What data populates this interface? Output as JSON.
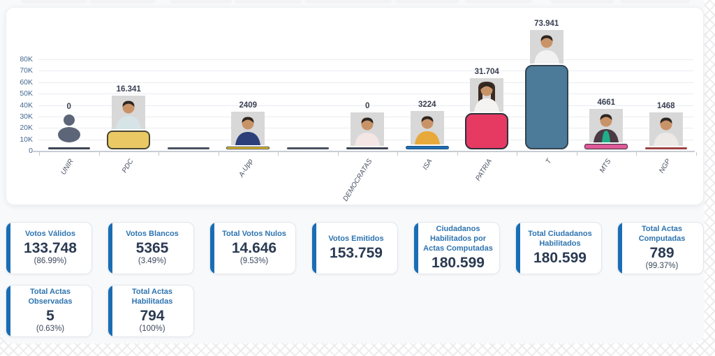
{
  "page": {
    "background_pattern_color": "#ececee",
    "panel_color": "#f8f9fb",
    "accent_color": "#1a6db5",
    "title_color": "#2e74b0",
    "number_color": "#2b3a52"
  },
  "chart_data": {
    "type": "bar",
    "title": "",
    "xlabel": "",
    "ylabel": "",
    "ylim": [
      0,
      80000
    ],
    "yticks": [
      "0",
      "10K",
      "20K",
      "30K",
      "40K",
      "50K",
      "60K",
      "70K",
      "80K"
    ],
    "grid": true,
    "legend": false,
    "categories": [
      "UNIR",
      "PDC",
      "",
      "A-Upp",
      "",
      "DEMOCRATAS",
      "ISA",
      "PATRIA",
      "T",
      "MTS",
      "NGP"
    ],
    "values": [
      0,
      16341,
      0,
      2409,
      0,
      0,
      3224,
      31704,
      73941,
      4661,
      1468
    ],
    "value_labels": [
      "0",
      "16.341",
      "",
      "2409",
      "",
      "0",
      "3224",
      "31.704",
      "73.941",
      "4661",
      "1468"
    ],
    "bar_colors": [
      "#3e4454",
      "#eac964",
      "#4b515f",
      "#e8c52f",
      "#4b515f",
      "#3e4454",
      "#1d6fb5",
      "#e63a62",
      "#4c7a99",
      "#df5a97",
      "#9c4343"
    ],
    "bar_border_colors": [
      "",
      "#4a4632",
      "",
      "#4a4632",
      "",
      "",
      "#1d4f7d",
      "#2f2f3d",
      "#32434f",
      "#3a2f3c",
      "#502626"
    ],
    "icons": [
      "person-silhouette",
      null,
      null,
      null,
      null,
      null,
      null,
      null,
      null,
      null,
      null
    ],
    "photos": [
      null,
      {
        "shirt": "#d6e4e8",
        "hair": "short"
      },
      null,
      {
        "shirt": "#2c3f7a",
        "hair": "short"
      },
      null,
      {
        "shirt": "#f3e6e4",
        "hair": "short"
      },
      {
        "shirt": "#e8a93c",
        "hair": "short"
      },
      {
        "shirt": "#f5f3f1",
        "hair": "long"
      },
      {
        "shirt": "#f2f2f2",
        "hair": "short"
      },
      {
        "shirt": "#1fae87",
        "hair": "short",
        "jacket": "#4a3b45"
      },
      {
        "shirt": "#ece9e6",
        "hair": "short"
      }
    ]
  },
  "cards": {
    "rows": [
      [
        {
          "id": "votos-validos",
          "title": "Votos Válidos",
          "value": "133.748",
          "percent": "(86.99%)"
        },
        {
          "id": "votos-blancos",
          "title": "Votos Blancos",
          "value": "5365",
          "percent": "(3.49%)"
        },
        {
          "id": "total-votos-nulos",
          "title": "Total Votos Nulos",
          "value": "14.646",
          "percent": "(9.53%)"
        },
        {
          "id": "votos-emitidos",
          "title": "Votos Emitidos",
          "value": "153.759",
          "percent": ""
        },
        {
          "id": "ciudadanos-habilitados-por-actas-computadas",
          "title": "Ciudadanos Habilitados por Actas Computadas",
          "value": "180.599",
          "percent": ""
        },
        {
          "id": "total-ciudadanos-habilitados",
          "title": "Total Ciudadanos Habilitados",
          "value": "180.599",
          "percent": ""
        },
        {
          "id": "total-actas-computadas",
          "title": "Total Actas Computadas",
          "value": "789",
          "percent": "(99.37%)"
        }
      ],
      [
        {
          "id": "total-actas-observadas",
          "title": "Total Actas Observadas",
          "value": "5",
          "percent": "(0.63%)"
        },
        {
          "id": "total-actas-habilitadas",
          "title": "Total Actas Habilitadas",
          "value": "794",
          "percent": "(100%)"
        }
      ]
    ]
  }
}
